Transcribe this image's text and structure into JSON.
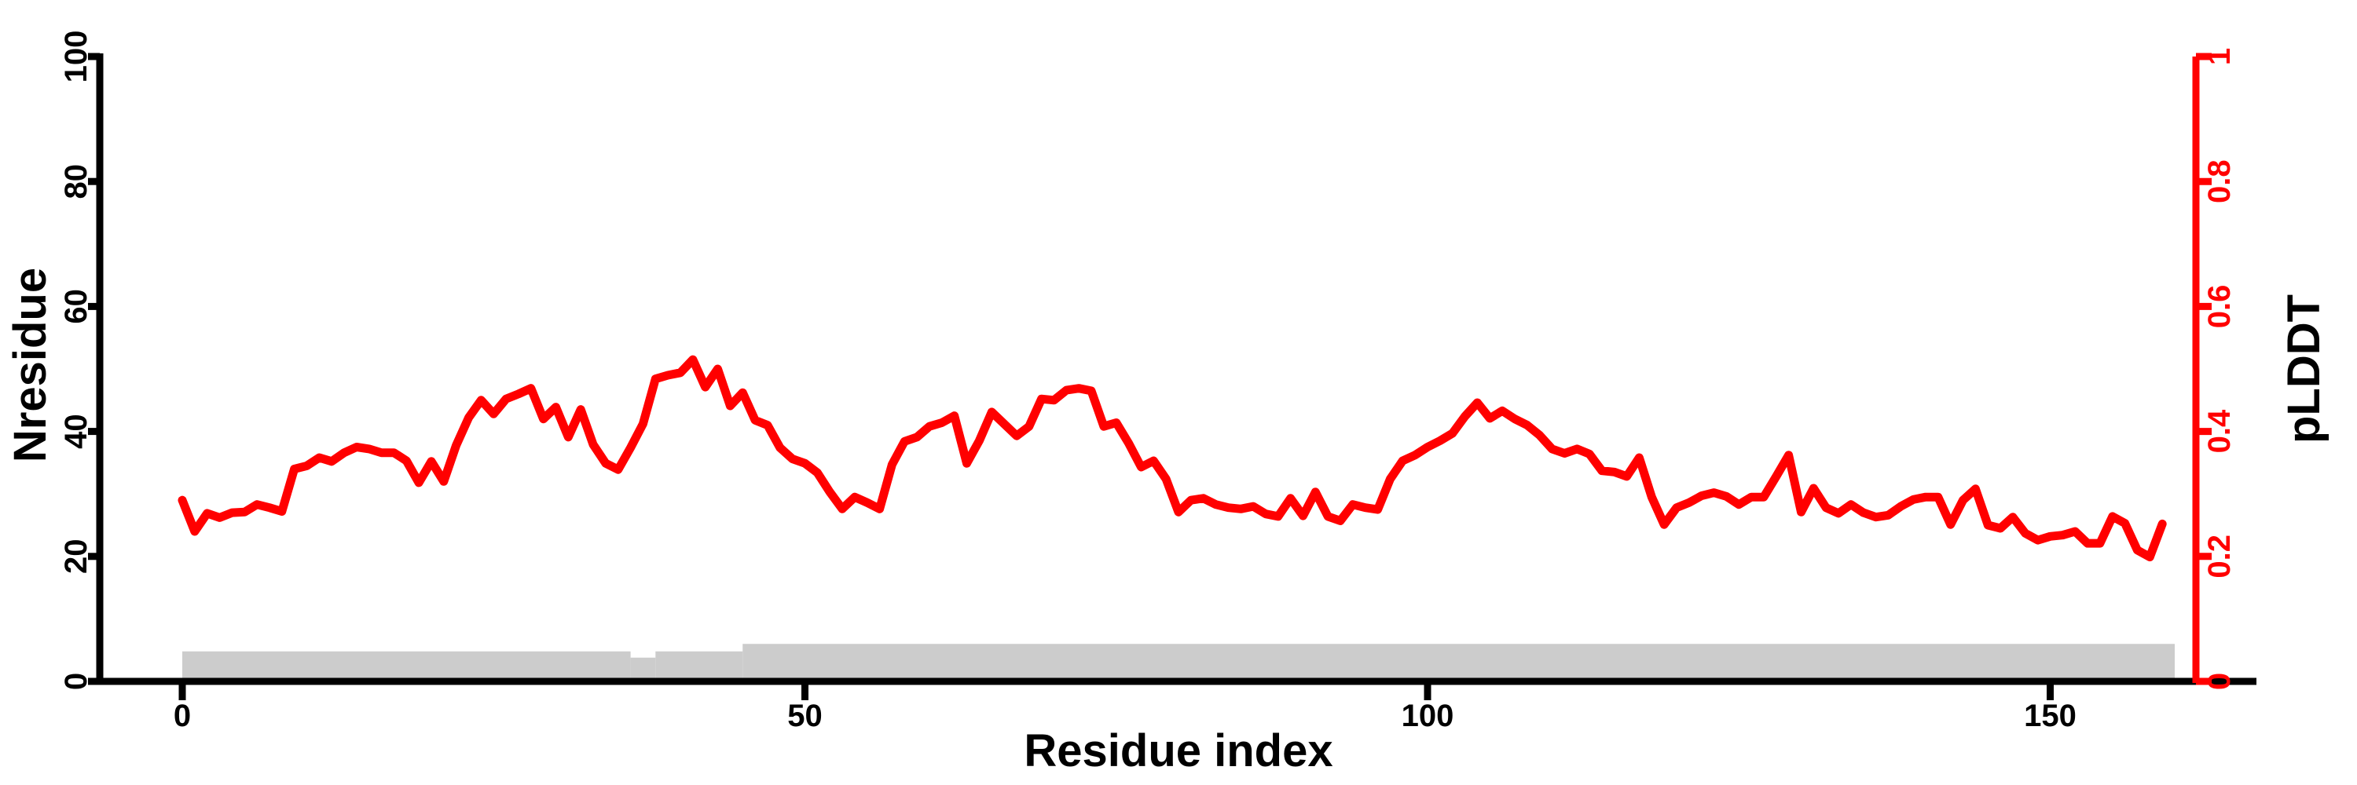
{
  "figure": {
    "background": "#ffffff",
    "axis_color": "#000000",
    "accent_color": "#ff0000",
    "coverage_color": "#cccccc"
  },
  "chart_data": {
    "type": "line",
    "title": "",
    "xlabel": "Residue index",
    "x_axis": {
      "ticks": [
        0,
        50,
        100,
        150
      ],
      "range": [
        0,
        166
      ]
    },
    "left_axis": {
      "label": "Nresidue",
      "ticks": [
        0,
        20,
        40,
        60,
        80,
        100
      ],
      "range": [
        0,
        100
      ],
      "color": "#000000"
    },
    "right_axis": {
      "label": "pLDDT",
      "ticks": [
        0,
        0.2,
        0.4,
        0.6,
        0.8,
        1
      ],
      "range": [
        0,
        1
      ],
      "color": "#ff0000"
    },
    "grid": false,
    "legend": "none",
    "series": [
      {
        "name": "pLDDT",
        "color": "#ff0000",
        "axis": "right",
        "x_start": 1,
        "x_step": 1,
        "values": [
          0.29,
          0.24,
          0.269,
          0.262,
          0.27,
          0.271,
          0.283,
          0.278,
          0.272,
          0.34,
          0.345,
          0.358,
          0.352,
          0.366,
          0.375,
          0.372,
          0.366,
          0.366,
          0.353,
          0.318,
          0.352,
          0.32,
          0.378,
          0.422,
          0.45,
          0.428,
          0.452,
          0.46,
          0.469,
          0.42,
          0.439,
          0.391,
          0.435,
          0.379,
          0.349,
          0.339,
          0.374,
          0.412,
          0.484,
          0.49,
          0.494,
          0.515,
          0.471,
          0.5,
          0.441,
          0.462,
          0.418,
          0.41,
          0.374,
          0.356,
          0.349,
          0.334,
          0.303,
          0.276,
          0.295,
          0.286,
          0.276,
          0.347,
          0.384,
          0.391,
          0.408,
          0.414,
          0.425,
          0.349,
          0.385,
          0.431,
          0.412,
          0.393,
          0.408,
          0.452,
          0.45,
          0.466,
          0.469,
          0.465,
          0.408,
          0.414,
          0.381,
          0.343,
          0.353,
          0.324,
          0.271,
          0.29,
          0.293,
          0.283,
          0.278,
          0.276,
          0.28,
          0.268,
          0.264,
          0.293,
          0.265,
          0.303,
          0.264,
          0.257,
          0.283,
          0.278,
          0.275,
          0.324,
          0.353,
          0.362,
          0.375,
          0.385,
          0.397,
          0.424,
          0.446,
          0.421,
          0.433,
          0.42,
          0.41,
          0.394,
          0.372,
          0.365,
          0.372,
          0.364,
          0.337,
          0.335,
          0.328,
          0.358,
          0.295,
          0.251,
          0.278,
          0.286,
          0.297,
          0.302,
          0.296,
          0.283,
          0.295,
          0.295,
          0.328,
          0.362,
          0.271,
          0.309,
          0.278,
          0.269,
          0.283,
          0.27,
          0.263,
          0.266,
          0.28,
          0.291,
          0.295,
          0.295,
          0.251,
          0.29,
          0.308,
          0.25,
          0.245,
          0.263,
          0.237,
          0.226,
          0.232,
          0.234,
          0.24,
          0.221,
          0.221,
          0.264,
          0.253,
          0.21,
          0.199,
          0.252
        ]
      }
    ],
    "coverage_bar": {
      "color": "#cccccc",
      "units": "Nresidue",
      "segments": [
        {
          "from": 0,
          "to": 36,
          "height": 4.8
        },
        {
          "from": 36,
          "to": 38,
          "height": 3.8
        },
        {
          "from": 38,
          "to": 45,
          "height": 4.8
        },
        {
          "from": 45,
          "to": 160,
          "height": 6.0
        }
      ]
    }
  }
}
